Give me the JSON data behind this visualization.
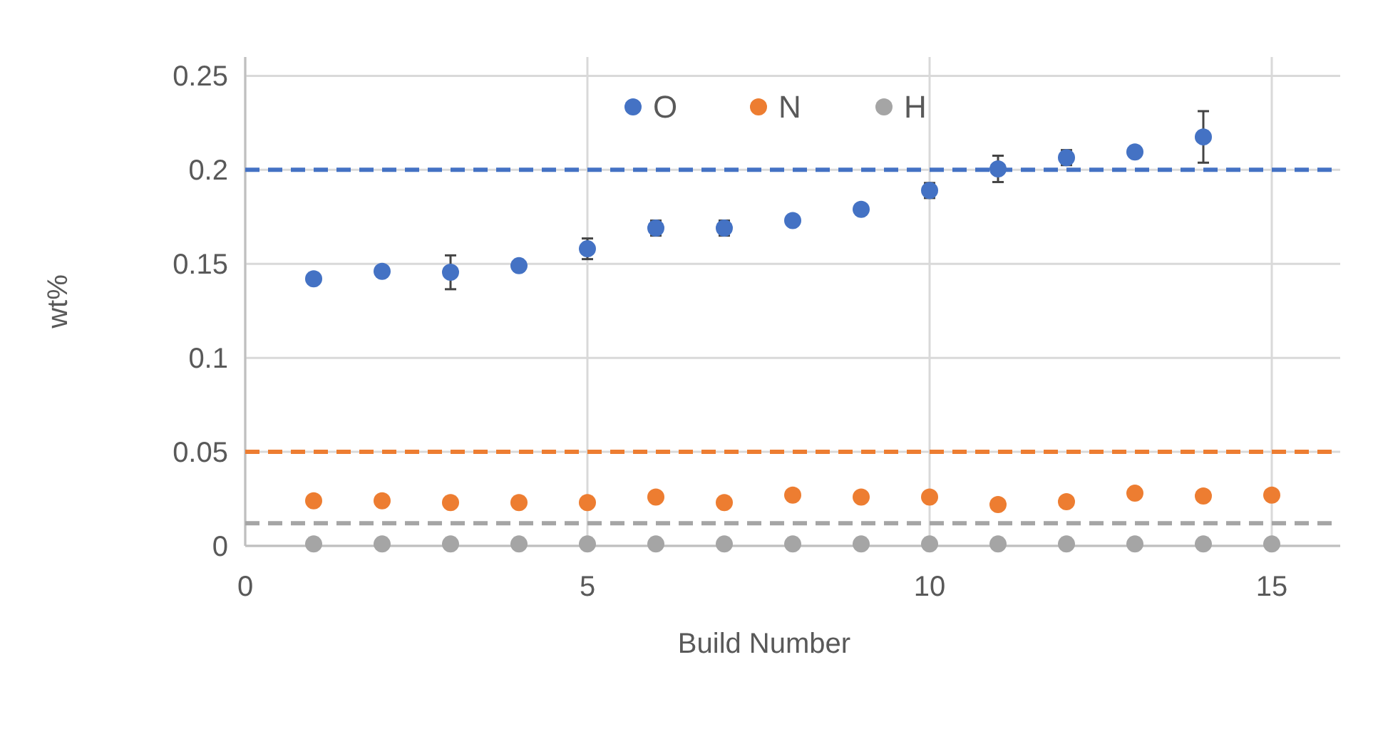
{
  "chart_data": {
    "type": "scatter",
    "xlabel": "Build Number",
    "ylabel": "wt%",
    "x": [
      1,
      2,
      3,
      4,
      5,
      6,
      7,
      8,
      9,
      10,
      11,
      12,
      13,
      14,
      15
    ],
    "series": [
      {
        "name": "O",
        "color": "#4472c4",
        "x": [
          1,
          2,
          3,
          4,
          5,
          6,
          7,
          8,
          9,
          10,
          11,
          12,
          13,
          14
        ],
        "values": [
          0.142,
          0.146,
          0.1455,
          0.149,
          0.158,
          0.169,
          0.169,
          0.173,
          0.179,
          0.189,
          0.2005,
          0.2065,
          0.2095,
          0.2175
        ],
        "errors": [
          null,
          null,
          0.009,
          null,
          0.0055,
          0.004,
          0.004,
          null,
          null,
          0.004,
          0.007,
          0.004,
          null,
          0.0137
        ]
      },
      {
        "name": "N",
        "color": "#ed7d31",
        "values": [
          0.024,
          0.024,
          0.023,
          0.023,
          0.023,
          0.026,
          0.023,
          0.027,
          0.026,
          0.026,
          0.022,
          0.0235,
          0.028,
          0.0265,
          0.027
        ]
      },
      {
        "name": "H",
        "color": "#a5a5a5",
        "values": [
          0.001,
          0.001,
          0.001,
          0.001,
          0.001,
          0.001,
          0.001,
          0.001,
          0.001,
          0.001,
          0.001,
          0.001,
          0.001,
          0.001,
          0.001
        ]
      }
    ],
    "ref_lines": [
      {
        "axis": "y",
        "value": 0.2,
        "color": "#4472c4",
        "line_style": "dashed"
      },
      {
        "axis": "y",
        "value": 0.05,
        "color": "#ed7d31",
        "line_style": "dashed"
      },
      {
        "axis": "y",
        "value": 0.012,
        "color": "#a5a5a5",
        "line_style": "dashed"
      }
    ],
    "xlim": [
      0,
      16
    ],
    "xticks": [
      0,
      5,
      10,
      15
    ],
    "ylim": [
      0,
      0.26
    ],
    "yticks": [
      0,
      0.05,
      0.1,
      0.15,
      0.2,
      0.25
    ],
    "grid": true,
    "legend": "top",
    "marker": "circle"
  }
}
